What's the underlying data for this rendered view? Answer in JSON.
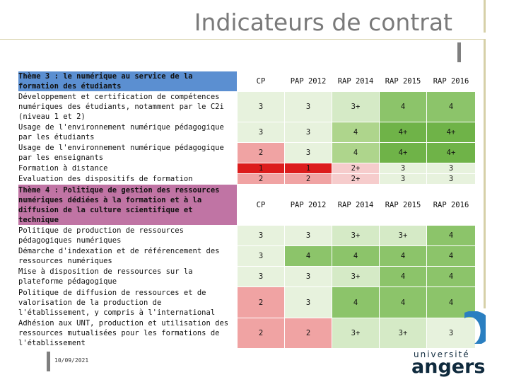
{
  "slide": {
    "title": "Indicateurs de contrat",
    "date": "10/09/2021",
    "logo_line1": "université",
    "logo_line2": "angers"
  },
  "columns": [
    "CP",
    "PAP 2012",
    "RAP 2014",
    "RAP 2015",
    "RAP 2016"
  ],
  "theme3": {
    "title": "Thème 3 : le numérique au service de la formation des étudiants",
    "rows": [
      {
        "label": "Développement et certification de compétences numériques des étudiants, notamment par le C2i (niveau 1 et 2)",
        "values": [
          "3",
          "3",
          "3+",
          "4",
          "4"
        ]
      },
      {
        "label": "Usage de l'environnement numérique pédagogique par les étudiants",
        "values": [
          "3",
          "3",
          "4",
          "4+",
          "4+"
        ]
      },
      {
        "label": "Usage de l'environnement numérique pédagogique par les enseignants",
        "values": [
          "2",
          "3",
          "4",
          "4+",
          "4+"
        ]
      },
      {
        "label": "Formation à distance",
        "values": [
          "1",
          "1",
          "2+",
          "3",
          "3"
        ]
      },
      {
        "label": "Evaluation des dispositifs de formation",
        "values": [
          "2",
          "2",
          "2+",
          "3",
          "3"
        ]
      }
    ]
  },
  "theme4": {
    "title": "Thème 4 : Politique de gestion des ressources numériques dédiées à la formation et à la diffusion de la culture scientifique et technique",
    "rows": [
      {
        "label": "Politique de production de ressources pédagogiques numériques",
        "values": [
          "3",
          "3",
          "3+",
          "3+",
          "4"
        ]
      },
      {
        "label": "Démarche d'indexation et de référencement des ressources numériques",
        "values": [
          "3",
          "4",
          "4",
          "4",
          "4"
        ]
      },
      {
        "label": "Mise à disposition de ressources sur la plateforme pédagogique",
        "values": [
          "3",
          "3",
          "3+",
          "4",
          "4"
        ]
      },
      {
        "label": "Politique de diffusion de ressources et de valorisation de la production de l'établissement, y compris à l'international",
        "values": [
          "2",
          "3",
          "4",
          "4",
          "4"
        ]
      },
      {
        "label": "Adhésion aux UNT, production et utilisation des ressources mutualisées pour les formations de l'établissement",
        "values": [
          "2",
          "2",
          "3+",
          "3+",
          "3"
        ]
      }
    ]
  },
  "colors": {
    "theme3_header": "#5b8fd1",
    "theme4_header": "#c074a4",
    "level_red": "#dc1c1c",
    "level_green": "#6fb348"
  }
}
